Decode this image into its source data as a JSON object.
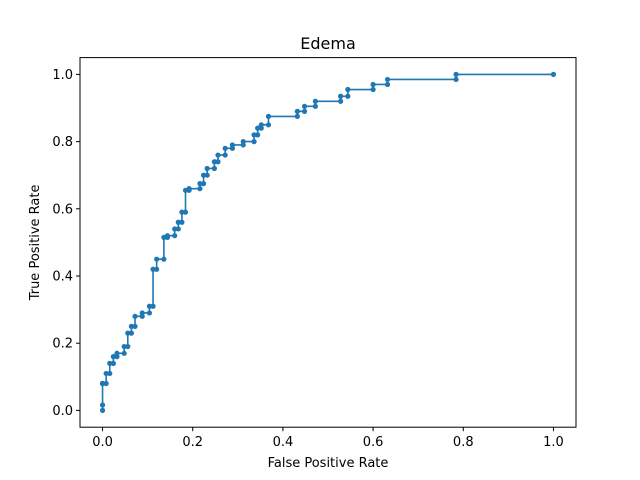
{
  "chart_data": {
    "type": "line",
    "title": "Edema",
    "xlabel": "False Positive Rate",
    "ylabel": "True Positive Rate",
    "xlim": [
      -0.05,
      1.05
    ],
    "ylim": [
      -0.05,
      1.05
    ],
    "x_ticks": [
      "0.0",
      "0.2",
      "0.4",
      "0.6",
      "0.8",
      "1.0"
    ],
    "y_ticks": [
      "0.0",
      "0.2",
      "0.4",
      "0.6",
      "0.8",
      "1.0"
    ],
    "grid": false,
    "color": "#1f77b4",
    "series": [
      {
        "x": [
          0.0,
          0.0,
          0.0,
          0.0,
          0.0,
          0.008,
          0.008,
          0.016,
          0.016,
          0.024,
          0.024,
          0.032,
          0.032,
          0.048,
          0.048,
          0.056,
          0.056,
          0.064,
          0.064,
          0.072,
          0.072,
          0.088,
          0.088,
          0.104,
          0.104,
          0.112,
          0.112,
          0.12,
          0.12,
          0.136,
          0.136,
          0.144,
          0.144,
          0.16,
          0.16,
          0.168,
          0.168,
          0.176,
          0.176,
          0.184,
          0.184,
          0.192,
          0.192,
          0.216,
          0.216,
          0.224,
          0.224,
          0.232,
          0.232,
          0.248,
          0.248,
          0.256,
          0.256,
          0.272,
          0.272,
          0.288,
          0.288,
          0.312,
          0.312,
          0.336,
          0.336,
          0.344,
          0.344,
          0.352,
          0.352,
          0.368,
          0.368,
          0.432,
          0.432,
          0.448,
          0.448,
          0.472,
          0.472,
          0.528,
          0.528,
          0.544,
          0.544,
          0.6,
          0.6,
          0.632,
          0.632,
          0.784,
          0.784,
          1.0
        ],
        "y": [
          0.0,
          0.016,
          0.08,
          0.08,
          0.08,
          0.08,
          0.11,
          0.11,
          0.14,
          0.14,
          0.16,
          0.16,
          0.17,
          0.17,
          0.19,
          0.19,
          0.23,
          0.23,
          0.25,
          0.25,
          0.28,
          0.28,
          0.29,
          0.29,
          0.31,
          0.31,
          0.42,
          0.42,
          0.45,
          0.45,
          0.515,
          0.515,
          0.52,
          0.52,
          0.54,
          0.54,
          0.56,
          0.56,
          0.59,
          0.59,
          0.655,
          0.655,
          0.66,
          0.66,
          0.675,
          0.675,
          0.7,
          0.7,
          0.72,
          0.72,
          0.74,
          0.74,
          0.76,
          0.76,
          0.78,
          0.78,
          0.79,
          0.79,
          0.8,
          0.8,
          0.82,
          0.82,
          0.84,
          0.84,
          0.85,
          0.85,
          0.875,
          0.875,
          0.89,
          0.89,
          0.905,
          0.905,
          0.92,
          0.92,
          0.935,
          0.935,
          0.955,
          0.955,
          0.97,
          0.97,
          0.985,
          0.985,
          1.0,
          1.0
        ]
      }
    ]
  }
}
